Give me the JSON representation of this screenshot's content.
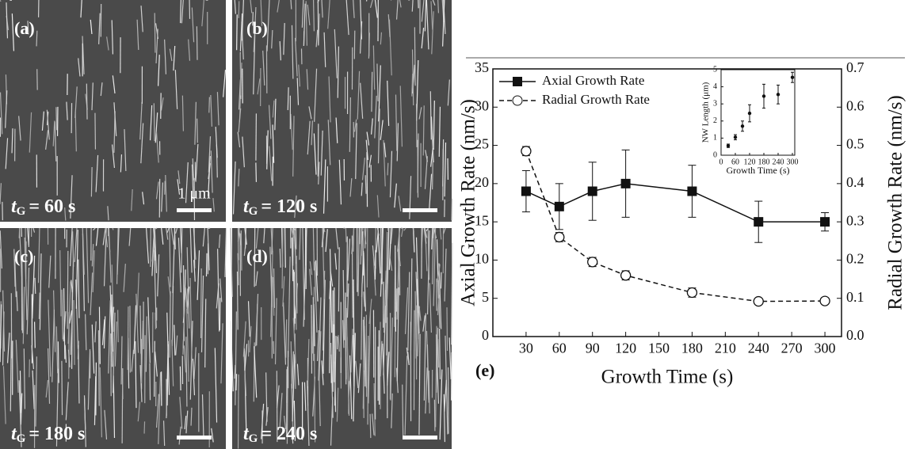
{
  "panels": [
    {
      "label": "(a)",
      "caption": {
        "var": "t",
        "sub": "G",
        "rest": "= 60 s"
      },
      "scale": "1 μm"
    },
    {
      "label": "(b)",
      "caption": {
        "var": "t",
        "sub": "G",
        "rest": "= 120 s"
      }
    },
    {
      "label": "(c)",
      "caption": {
        "var": "t",
        "sub": "G",
        "rest": "= 180 s"
      }
    },
    {
      "label": "(d)",
      "caption": {
        "var": "t",
        "sub": "G",
        "rest": "= 240 s"
      }
    }
  ],
  "chart_data": [
    {
      "type": "line",
      "label": "(e)",
      "xlabel": "Growth Time (s)",
      "ylabel": "Axial Growth Rate (nm/s)",
      "y2label": "Radial Growth Rate (nm/s)",
      "x": [
        30,
        60,
        90,
        120,
        180,
        240,
        300
      ],
      "xlim": [
        0,
        315
      ],
      "xticks": [
        30,
        60,
        90,
        120,
        150,
        180,
        210,
        240,
        270,
        300
      ],
      "ylim": [
        0,
        35
      ],
      "yticks": [
        0,
        5,
        10,
        15,
        20,
        25,
        30,
        35
      ],
      "y2lim": [
        0,
        0.7
      ],
      "y2ticks": [
        {
          "value": 0,
          "label": "0.0"
        },
        0.1,
        0.2,
        0.3,
        0.4,
        0.5,
        0.6,
        0.7
      ],
      "legend": "upper-left",
      "series": [
        {
          "name": "Axial Growth Rate",
          "color": "#111111",
          "marker": "square",
          "dash": "solid",
          "values": [
            19,
            17,
            19,
            20,
            19,
            15,
            15
          ],
          "errors": [
            2.7,
            3,
            3.8,
            4.4,
            3.4,
            2.7,
            1.2
          ]
        },
        {
          "name": "Radial Growth Rate",
          "color": "#111111",
          "marker": "open-circle",
          "dash": "dashed",
          "axis": "y2",
          "values": [
            0.485,
            0.26,
            0.195,
            0.16,
            0.115,
            0.092,
            0.093
          ],
          "errors": [
            0.012,
            0.012,
            0.012,
            0.012,
            0.012,
            0.006,
            0.006
          ]
        }
      ]
    },
    {
      "type": "scatter",
      "xlabel": "Growth Time (s)",
      "ylabel": "NW Length (μm)",
      "x": [
        30,
        60,
        90,
        120,
        180,
        240,
        300
      ],
      "xlim": [
        0,
        310
      ],
      "xticks": [
        0,
        60,
        120,
        180,
        240,
        300
      ],
      "ylim": [
        0,
        5
      ],
      "yticks": [
        0,
        1,
        2,
        3,
        4,
        5
      ],
      "series": [
        {
          "color": "#111111",
          "values": [
            0.55,
            1.05,
            1.7,
            2.45,
            3.45,
            3.55,
            4.55
          ],
          "errors": [
            0.1,
            0.15,
            0.3,
            0.5,
            0.7,
            0.55,
            0.3
          ]
        }
      ]
    }
  ]
}
